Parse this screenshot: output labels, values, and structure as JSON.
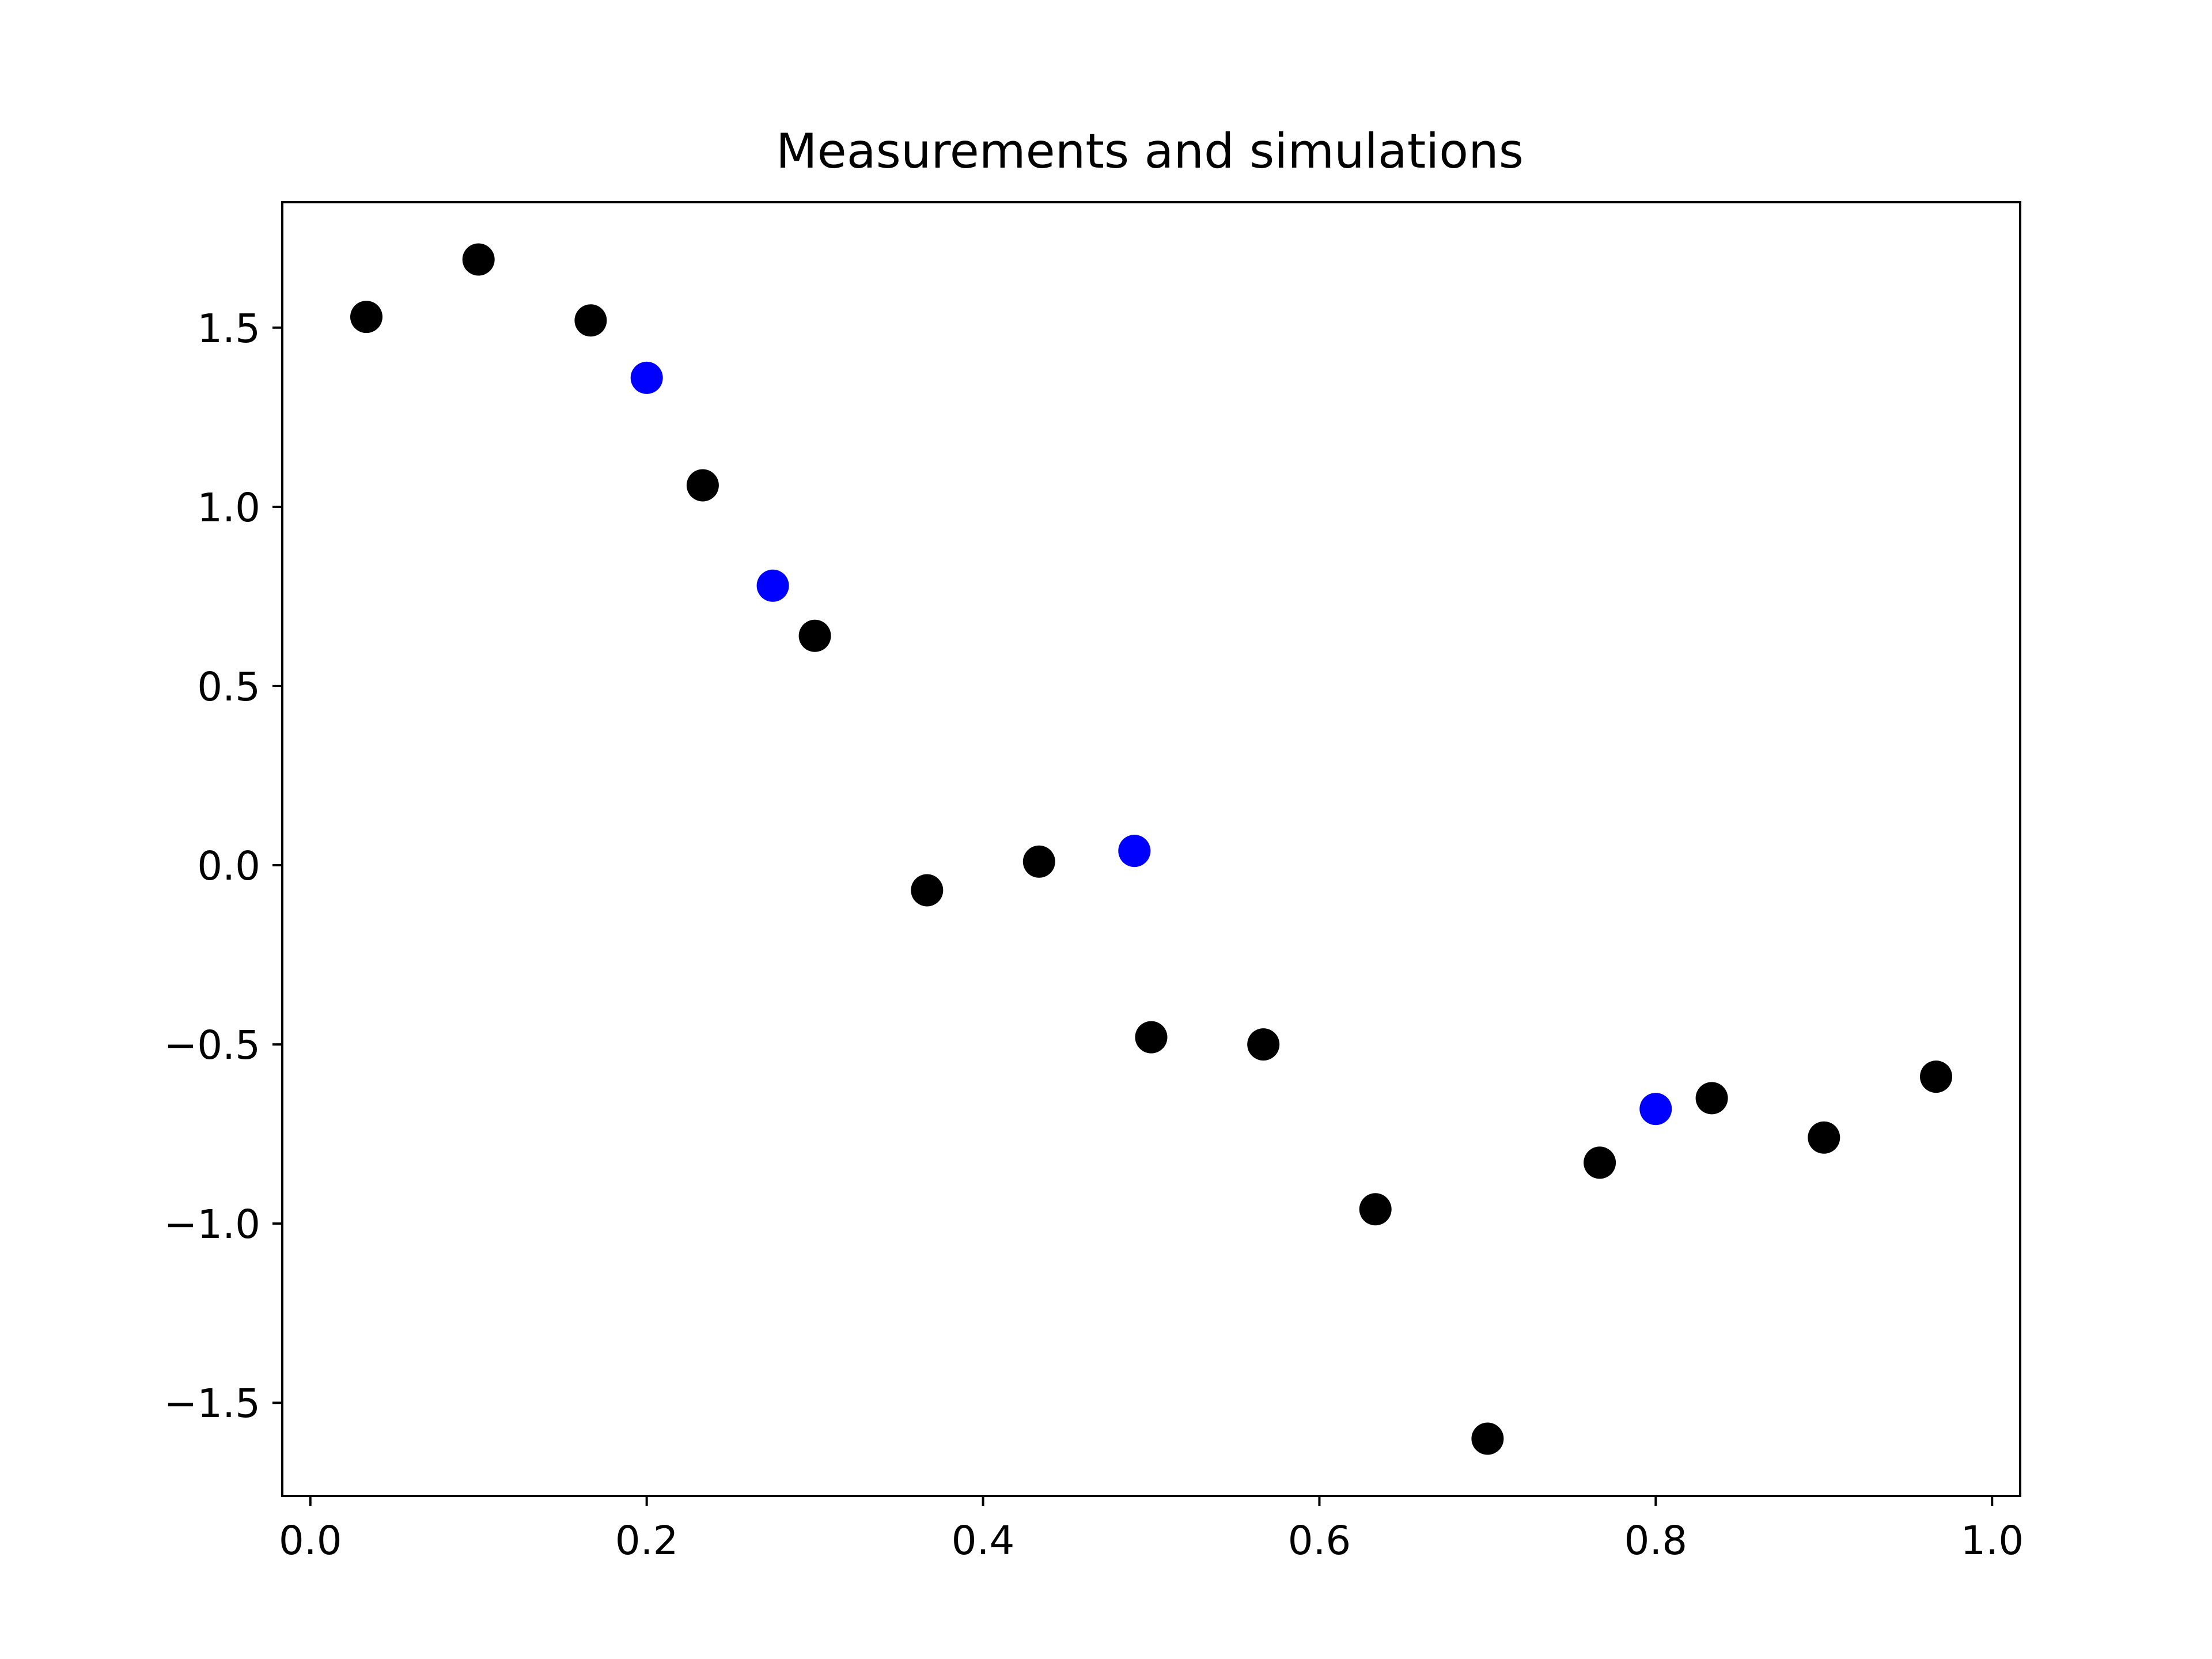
{
  "chart_data": {
    "type": "scatter",
    "title": "Measurements and simulations",
    "xlabel": "",
    "ylabel": "",
    "xlim": [
      -0.0167,
      1.0167
    ],
    "ylim": [
      -1.76,
      1.85
    ],
    "grid": false,
    "x_ticks": [
      {
        "value": 0.0,
        "label": "0.0"
      },
      {
        "value": 0.2,
        "label": "0.2"
      },
      {
        "value": 0.4,
        "label": "0.4"
      },
      {
        "value": 0.6,
        "label": "0.6"
      },
      {
        "value": 0.8,
        "label": "0.8"
      },
      {
        "value": 1.0,
        "label": "1.0"
      }
    ],
    "y_ticks": [
      {
        "value": -1.5,
        "label": "−1.5"
      },
      {
        "value": -1.0,
        "label": "−1.0"
      },
      {
        "value": -0.5,
        "label": "−0.5"
      },
      {
        "value": 0.0,
        "label": "0.0"
      },
      {
        "value": 0.5,
        "label": "0.5"
      },
      {
        "value": 1.0,
        "label": "1.0"
      },
      {
        "value": 1.5,
        "label": "1.5"
      }
    ],
    "series": [
      {
        "color": "#000000",
        "x": [
          0.0333,
          0.1,
          0.1667,
          0.2333,
          0.3,
          0.3667,
          0.4333,
          0.5,
          0.5667,
          0.6333,
          0.7,
          0.7667,
          0.8333,
          0.9,
          0.9667
        ],
        "y": [
          1.53,
          1.69,
          1.52,
          1.06,
          0.64,
          -0.07,
          0.01,
          -0.48,
          -0.5,
          -0.96,
          -1.6,
          -0.83,
          -0.65,
          -0.76,
          -0.59
        ]
      },
      {
        "color": "#0000ff",
        "x": [
          0.2,
          0.275,
          0.49,
          0.8
        ],
        "y": [
          1.36,
          0.78,
          0.04,
          -0.68
        ]
      }
    ]
  }
}
